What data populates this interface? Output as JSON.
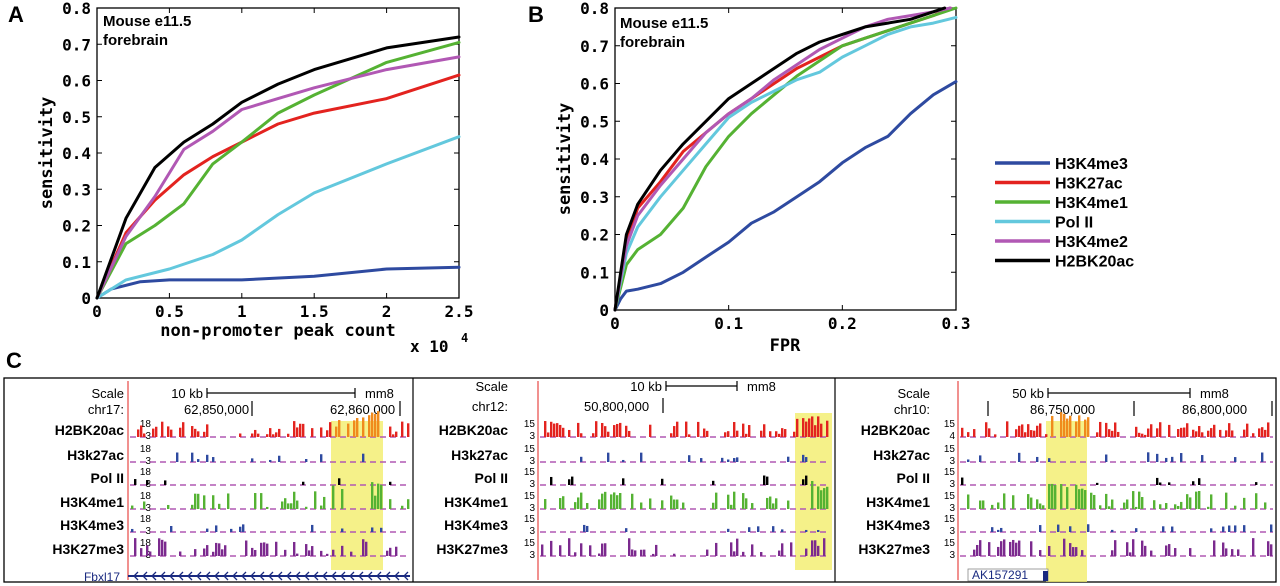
{
  "panels": {
    "A": {
      "letter": "A"
    },
    "B": {
      "letter": "B"
    },
    "C": {
      "letter": "C"
    }
  },
  "legend": {
    "items": [
      {
        "label": "H3K4me3",
        "color": "#2e4aa0"
      },
      {
        "label": "H3K27ac",
        "color": "#e3231f"
      },
      {
        "label": "H3K4me1",
        "color": "#55b233"
      },
      {
        "label": "Pol II",
        "color": "#63c8dd"
      },
      {
        "label": "H3K4me2",
        "color": "#b158b4"
      },
      {
        "label": "H2BK20ac",
        "color": "#000000"
      }
    ]
  },
  "chart_data": [
    {
      "type": "line",
      "panel": "A",
      "annotation": [
        "Mouse e11.5",
        "forebrain"
      ],
      "xlabel": "non-promoter peak count",
      "x_multiplier": "x 10",
      "x_multiplier_exp": "4",
      "ylabel": "sensitivity",
      "xlim": [
        0,
        2.5
      ],
      "ylim": [
        0,
        0.8
      ],
      "xticks": [
        "0",
        "0.5",
        "1",
        "1.5",
        "2",
        "2.5"
      ],
      "yticks": [
        "0",
        "0.1",
        "0.2",
        "0.3",
        "0.4",
        "0.5",
        "0.6",
        "0.7",
        "0.8"
      ],
      "series": [
        {
          "name": "H3K4me3",
          "color": "#2e4aa0",
          "x": [
            0,
            0.1,
            0.3,
            0.5,
            1.0,
            1.5,
            2.0,
            2.5
          ],
          "y": [
            0,
            0.025,
            0.045,
            0.05,
            0.05,
            0.06,
            0.08,
            0.085
          ]
        },
        {
          "name": "H3K27ac",
          "color": "#e3231f",
          "x": [
            0,
            0.2,
            0.4,
            0.6,
            0.8,
            1.0,
            1.25,
            1.5,
            2.0,
            2.5
          ],
          "y": [
            0,
            0.18,
            0.27,
            0.34,
            0.39,
            0.43,
            0.48,
            0.51,
            0.55,
            0.615
          ]
        },
        {
          "name": "H3K4me1",
          "color": "#55b233",
          "x": [
            0,
            0.2,
            0.4,
            0.6,
            0.8,
            1.0,
            1.25,
            1.5,
            2.0,
            2.5
          ],
          "y": [
            0,
            0.15,
            0.2,
            0.26,
            0.37,
            0.43,
            0.51,
            0.56,
            0.65,
            0.705
          ]
        },
        {
          "name": "Pol II",
          "color": "#63c8dd",
          "x": [
            0,
            0.2,
            0.5,
            0.8,
            1.0,
            1.25,
            1.5,
            2.0,
            2.5
          ],
          "y": [
            0,
            0.05,
            0.08,
            0.12,
            0.16,
            0.23,
            0.29,
            0.37,
            0.445
          ]
        },
        {
          "name": "H3K4me2",
          "color": "#b158b4",
          "x": [
            0,
            0.2,
            0.4,
            0.6,
            0.8,
            1.0,
            1.25,
            1.5,
            2.0,
            2.5
          ],
          "y": [
            0,
            0.17,
            0.28,
            0.41,
            0.46,
            0.52,
            0.55,
            0.58,
            0.63,
            0.665
          ]
        },
        {
          "name": "H2BK20ac",
          "color": "#000000",
          "x": [
            0,
            0.2,
            0.4,
            0.6,
            0.8,
            1.0,
            1.25,
            1.5,
            2.0,
            2.5
          ],
          "y": [
            0,
            0.22,
            0.36,
            0.43,
            0.48,
            0.54,
            0.59,
            0.63,
            0.69,
            0.72
          ]
        }
      ]
    },
    {
      "type": "line",
      "panel": "B",
      "annotation": [
        "Mouse e11.5",
        "forebrain"
      ],
      "xlabel": "FPR",
      "ylabel": "sensitivity",
      "xlim": [
        0,
        0.3
      ],
      "ylim": [
        0,
        0.8
      ],
      "xticks": [
        "0",
        "0.1",
        "0.2",
        "0.3"
      ],
      "yticks": [
        "0",
        "0.1",
        "0.2",
        "0.3",
        "0.4",
        "0.5",
        "0.6",
        "0.7",
        "0.8"
      ],
      "series": [
        {
          "name": "H3K4me3",
          "color": "#2e4aa0",
          "x": [
            0,
            0.005,
            0.01,
            0.02,
            0.04,
            0.06,
            0.08,
            0.1,
            0.12,
            0.14,
            0.16,
            0.18,
            0.2,
            0.22,
            0.24,
            0.26,
            0.28,
            0.3
          ],
          "y": [
            0,
            0.03,
            0.05,
            0.055,
            0.07,
            0.1,
            0.14,
            0.18,
            0.23,
            0.26,
            0.3,
            0.34,
            0.39,
            0.43,
            0.46,
            0.52,
            0.57,
            0.605
          ]
        },
        {
          "name": "H3K27ac",
          "color": "#e3231f",
          "x": [
            0,
            0.01,
            0.02,
            0.04,
            0.06,
            0.08,
            0.1,
            0.12,
            0.14,
            0.16,
            0.18,
            0.2,
            0.22,
            0.24,
            0.26,
            0.28,
            0.295
          ],
          "y": [
            0,
            0.18,
            0.27,
            0.34,
            0.42,
            0.47,
            0.52,
            0.56,
            0.6,
            0.64,
            0.67,
            0.7,
            0.72,
            0.74,
            0.76,
            0.78,
            0.8
          ]
        },
        {
          "name": "H3K4me1",
          "color": "#55b233",
          "x": [
            0,
            0.01,
            0.02,
            0.04,
            0.06,
            0.08,
            0.1,
            0.12,
            0.14,
            0.16,
            0.18,
            0.2,
            0.22,
            0.24,
            0.26,
            0.28,
            0.3
          ],
          "y": [
            0,
            0.12,
            0.16,
            0.2,
            0.27,
            0.38,
            0.46,
            0.52,
            0.57,
            0.62,
            0.66,
            0.7,
            0.72,
            0.74,
            0.76,
            0.78,
            0.8
          ]
        },
        {
          "name": "Pol II",
          "color": "#63c8dd",
          "x": [
            0,
            0.01,
            0.02,
            0.04,
            0.06,
            0.08,
            0.1,
            0.12,
            0.14,
            0.16,
            0.18,
            0.2,
            0.22,
            0.24,
            0.26,
            0.28,
            0.3
          ],
          "y": [
            0,
            0.15,
            0.22,
            0.3,
            0.37,
            0.44,
            0.51,
            0.55,
            0.58,
            0.61,
            0.63,
            0.67,
            0.7,
            0.73,
            0.75,
            0.76,
            0.775
          ]
        },
        {
          "name": "H3K4me2",
          "color": "#b158b4",
          "x": [
            0,
            0.01,
            0.02,
            0.04,
            0.06,
            0.08,
            0.1,
            0.12,
            0.14,
            0.16,
            0.18,
            0.2,
            0.22,
            0.24,
            0.26,
            0.28,
            0.295
          ],
          "y": [
            0,
            0.17,
            0.25,
            0.33,
            0.4,
            0.47,
            0.52,
            0.56,
            0.61,
            0.65,
            0.69,
            0.72,
            0.75,
            0.77,
            0.78,
            0.79,
            0.8
          ]
        },
        {
          "name": "H2BK20ac",
          "color": "#000000",
          "x": [
            0,
            0.01,
            0.02,
            0.04,
            0.06,
            0.08,
            0.1,
            0.12,
            0.14,
            0.16,
            0.18,
            0.2,
            0.22,
            0.24,
            0.26,
            0.28,
            0.29
          ],
          "y": [
            0,
            0.2,
            0.28,
            0.37,
            0.44,
            0.5,
            0.56,
            0.6,
            0.64,
            0.68,
            0.71,
            0.73,
            0.75,
            0.76,
            0.77,
            0.79,
            0.8
          ]
        }
      ]
    }
  ],
  "browser_panels": [
    {
      "scale_label": "Scale",
      "chrom_label": "chr17:",
      "scale_text": "10 kb",
      "assembly": "mm8",
      "coords": [
        "62,850,000",
        "62,860,000"
      ],
      "tracks": [
        {
          "label": "H2BK20ac",
          "ymax": "18",
          "ymin": "3",
          "color": "#e3231f"
        },
        {
          "label": "H3k27ac",
          "ymax": "18",
          "ymin": "3",
          "color": "#2e4aa0"
        },
        {
          "label": "Pol II",
          "ymax": "18",
          "ymin": "3",
          "color": "#000000"
        },
        {
          "label": "H3K4me1",
          "ymax": "18",
          "ymin": "3",
          "color": "#55b233"
        },
        {
          "label": "H3K4me3",
          "ymax": "18",
          "ymin": "3",
          "color": "#2e4aa0"
        },
        {
          "label": "H3K27me3",
          "ymax": "18",
          "ymin": "3",
          "color": "#7b2a8e"
        }
      ],
      "gene": "Fbxl17"
    },
    {
      "scale_label": "Scale",
      "chrom_label": "chr12:",
      "scale_text": "10 kb",
      "assembly": "mm8",
      "coords": [
        "50,800,000"
      ],
      "tracks": [
        {
          "label": "H2BK20ac",
          "ymax": "15",
          "ymin": "3",
          "color": "#e3231f"
        },
        {
          "label": "H3k27ac",
          "ymax": "15",
          "ymin": "3",
          "color": "#2e4aa0"
        },
        {
          "label": "Pol II",
          "ymax": "15",
          "ymin": "3",
          "color": "#000000"
        },
        {
          "label": "H3K4me1",
          "ymax": "15",
          "ymin": "3",
          "color": "#55b233"
        },
        {
          "label": "H3K4me3",
          "ymax": "15",
          "ymin": "3",
          "color": "#2e4aa0"
        },
        {
          "label": "H3K27me3",
          "ymax": "15",
          "ymin": "3",
          "color": "#7b2a8e"
        }
      ],
      "gene": ""
    },
    {
      "scale_label": "Scale",
      "chrom_label": "chr10:",
      "scale_text": "50 kb",
      "assembly": "mm8",
      "coords": [
        "86,750,000",
        "86,800,000"
      ],
      "tracks": [
        {
          "label": "H2BK20ac",
          "ymax": "15",
          "ymin": "4",
          "color": "#e3231f"
        },
        {
          "label": "H3k27ac",
          "ymax": "15",
          "ymin": "3",
          "color": "#2e4aa0"
        },
        {
          "label": "Pol II",
          "ymax": "15",
          "ymin": "3",
          "color": "#000000"
        },
        {
          "label": "H3K4me1",
          "ymax": "15",
          "ymin": "3",
          "color": "#55b233"
        },
        {
          "label": "H3K4me3",
          "ymax": "15",
          "ymin": "3",
          "color": "#2e4aa0"
        },
        {
          "label": "H3K27me3",
          "ymax": "15",
          "ymin": "3",
          "color": "#7b2a8e"
        }
      ],
      "gene": "AK157291"
    }
  ]
}
